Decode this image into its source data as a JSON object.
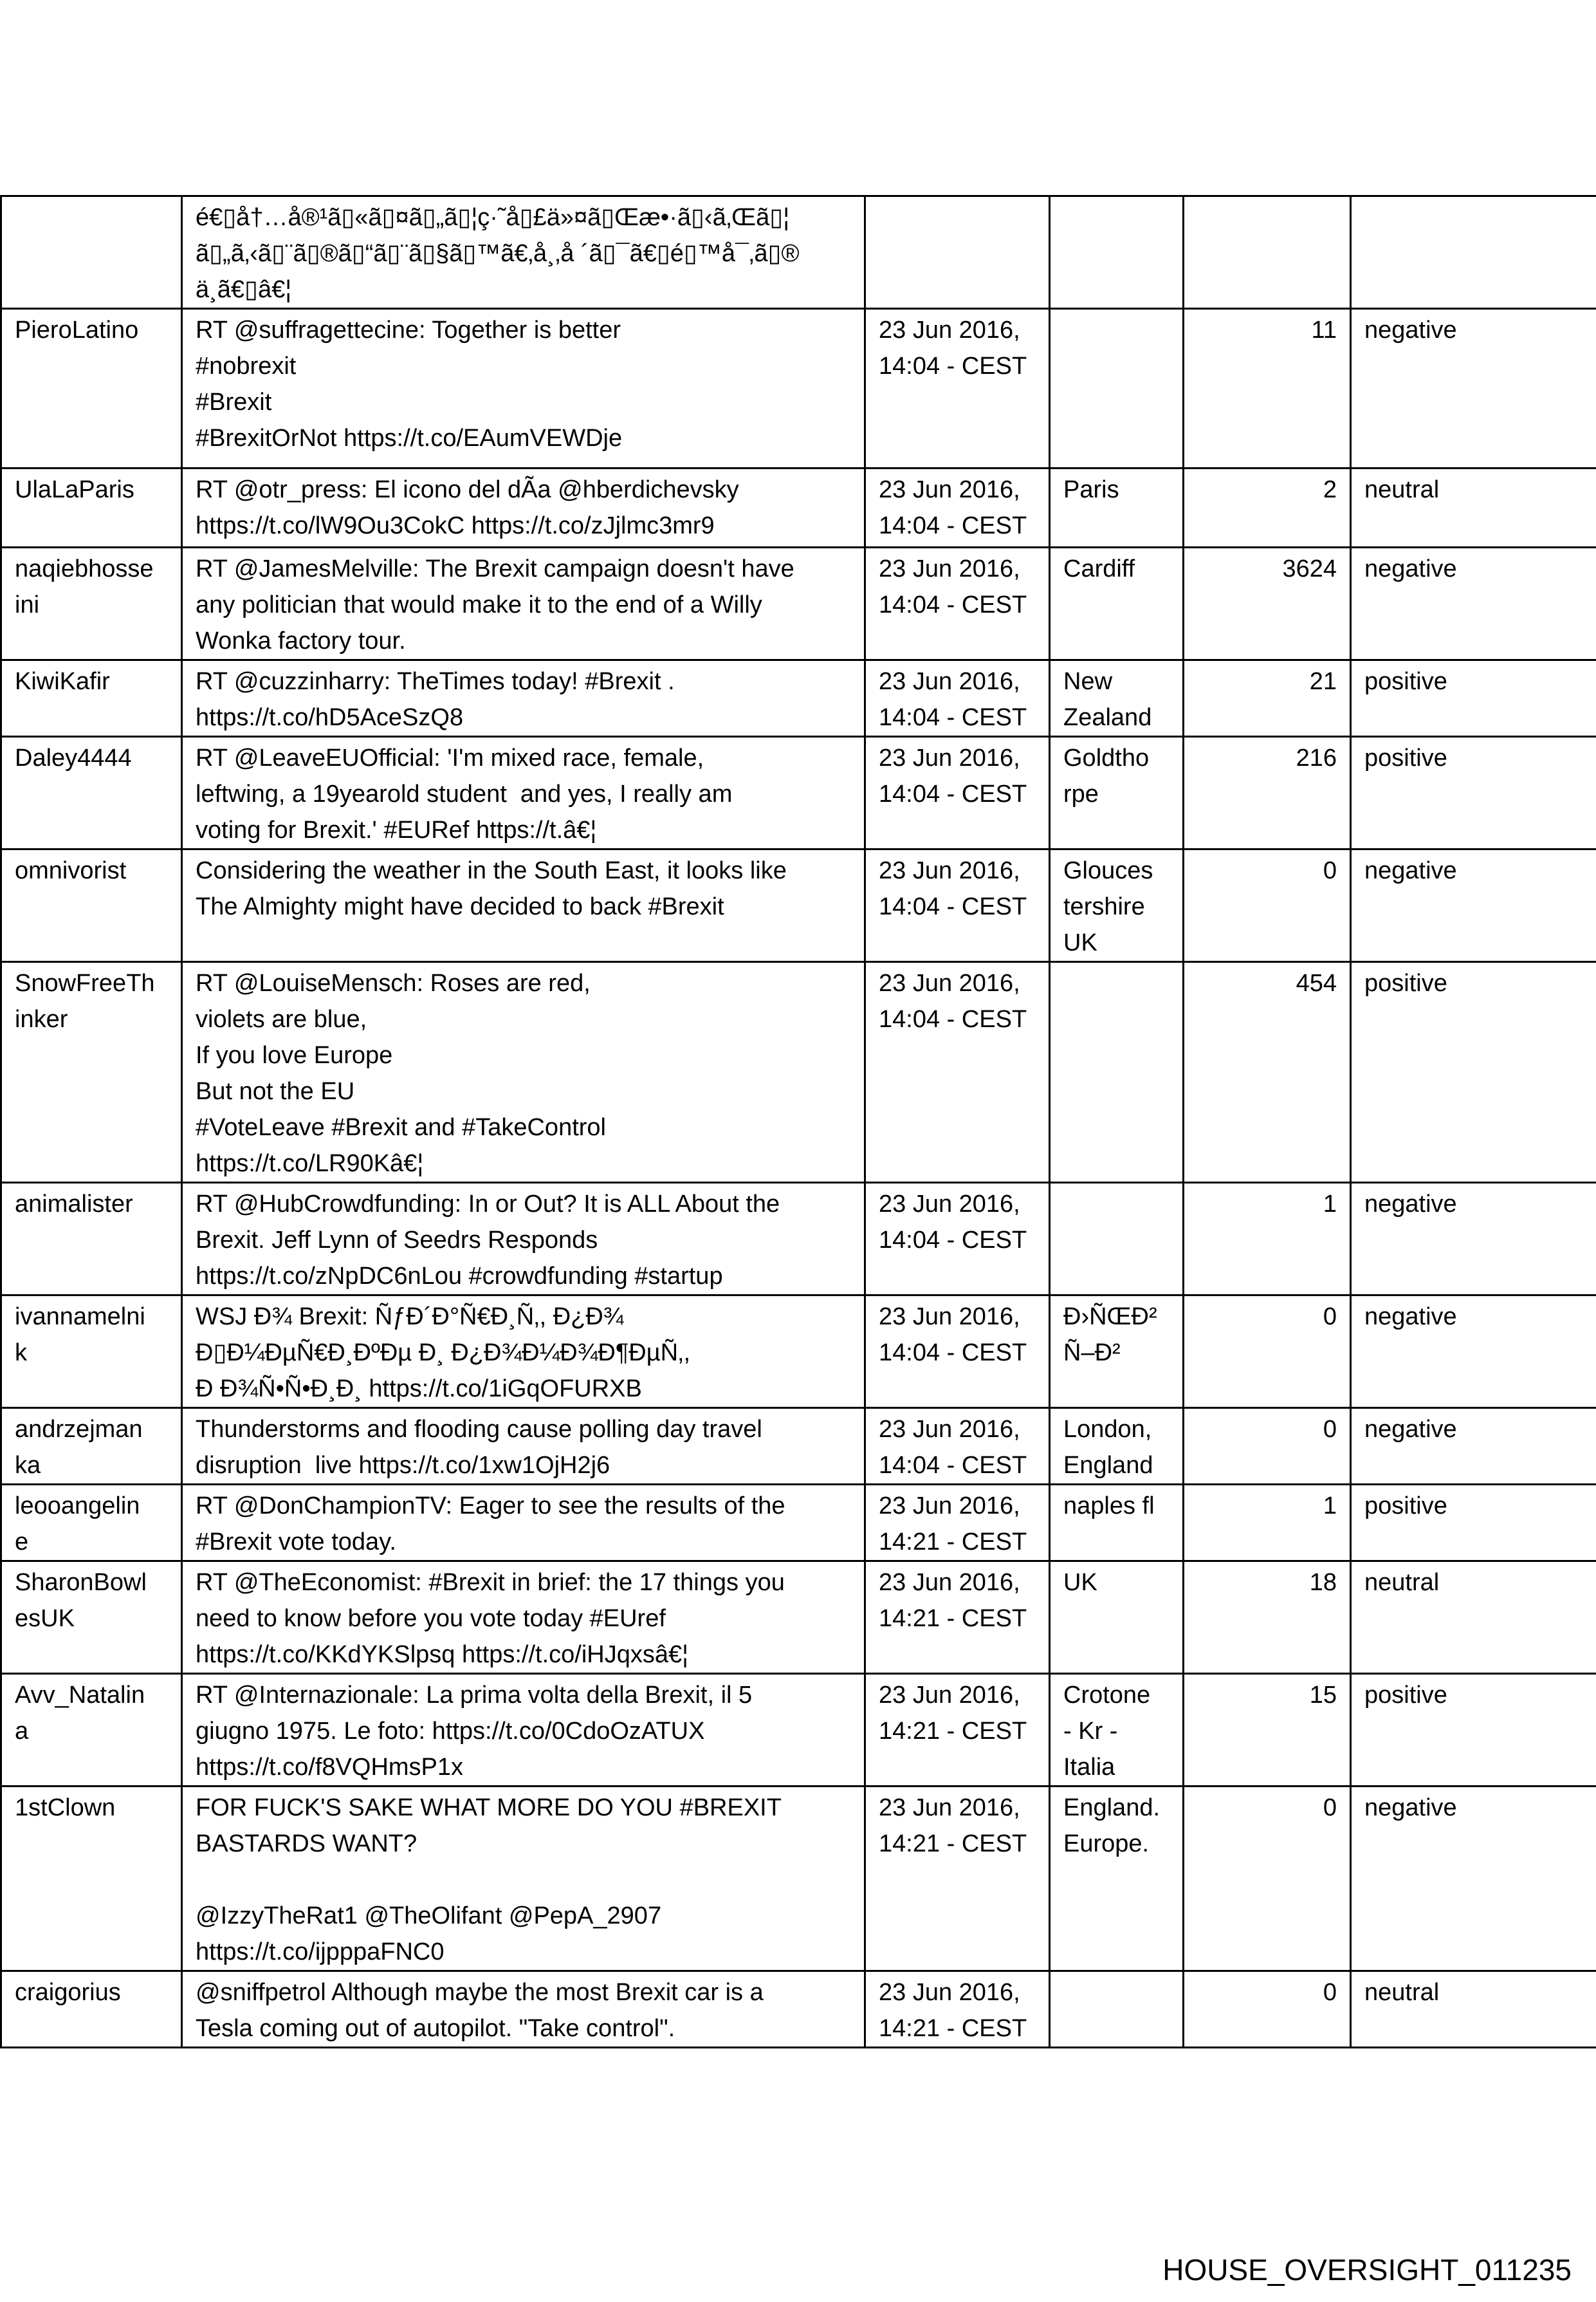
{
  "rows": [
    {
      "user": "",
      "text": "é€▯å†…å®¹ã▯«ã▯¤ã▯„ã▯¦ç·˜å▯£ä»¤ã▯Œæ•·ã▯‹ã‚Œã▯¦\nã▯„ã‚‹ã▯¨ã▯®ã▯“ã▯¨ã▯§ã▯™ã€‚å¸‚å ´ã▯¯ã€▯é▯™å¯‚ã▯®\nä¸ã€▯â€¦",
      "date": "",
      "location": "",
      "count": "",
      "sentiment": ""
    },
    {
      "user": "PieroLatino",
      "text": "RT @suffragettecine: Together is better\n#nobrexit\n#Brexit\n#BrexitOrNot https://t.co/EAumVEWDje",
      "date": "23 Jun 2016,\n14:04 - CEST",
      "location": "",
      "count": "11",
      "sentiment": "negative"
    },
    {
      "user": "UlaLaParis",
      "text": "RT @otr_press: El icono del dÃa @hberdichevsky\nhttps://t.co/lW9Ou3CokC https://t.co/zJjlmc3mr9",
      "date": "23 Jun 2016,\n14:04 - CEST",
      "location": "Paris",
      "count": "2",
      "sentiment": "neutral"
    },
    {
      "user": "naqiebhosse\nini",
      "text": "RT @JamesMelville: The Brexit campaign doesn't have\nany politician that would make it to the end of a Willy\nWonka factory tour.",
      "date": "23 Jun 2016,\n14:04 - CEST",
      "location": "Cardiff",
      "count": "3624",
      "sentiment": "negative"
    },
    {
      "user": "KiwiKafir",
      "text": "RT @cuzzinharry: TheTimes today! #Brexit .\nhttps://t.co/hD5AceSzQ8",
      "date": "23 Jun 2016,\n14:04 - CEST",
      "location": "New\nZealand",
      "count": "21",
      "sentiment": "positive"
    },
    {
      "user": "Daley4444",
      "text": "RT @LeaveEUOfficial: 'I'm mixed race, female,\nleftwing, a 19yearold student  and yes, I really am\nvoting for Brexit.' #EURef https://t.â€¦",
      "date": "23 Jun 2016,\n14:04 - CEST",
      "location": "Goldtho\nrpe",
      "count": "216",
      "sentiment": "positive"
    },
    {
      "user": "omnivorist",
      "text": "Considering the weather in the South East, it looks like\nThe Almighty might have decided to back #Brexit",
      "date": "23 Jun 2016,\n14:04 - CEST",
      "location": "Glouces\ntershire\nUK",
      "count": "0",
      "sentiment": "negative"
    },
    {
      "user": "SnowFreeTh\ninker",
      "text": "RT @LouiseMensch: Roses are red,\nviolets are blue,\nIf you love Europe\nBut not the EU\n#VoteLeave #Brexit and #TakeControl\nhttps://t.co/LR90Kâ€¦",
      "date": "23 Jun 2016,\n14:04 - CEST",
      "location": "",
      "count": "454",
      "sentiment": "positive"
    },
    {
      "user": "animalister",
      "text": "RT @HubCrowdfunding: In or Out? It is ALL About the\nBrexit. Jeff Lynn of Seedrs Responds\nhttps://t.co/zNpDC6nLou #crowdfunding #startup",
      "date": "23 Jun 2016,\n14:04 - CEST",
      "location": "",
      "count": "1",
      "sentiment": "negative"
    },
    {
      "user": "ivannamelni\nk",
      "text": "WSJ Ð¾ Brexit: ÑƒÐ´Ð°Ñ€Ð¸Ñ‚, Ð¿Ð¾\nÐ▯Ð¼ÐµÑ€Ð¸ÐºÐµ Ð¸ Ð¿Ð¾Ð¼Ð¾Ð¶ÐµÑ‚,\nÐ Ð¾Ñ•Ñ•Ð¸Ð¸ https://t.co/1iGqOFURXB",
      "date": "23 Jun 2016,\n14:04 - CEST",
      "location": "Ð›ÑŒÐ²\nÑ–Ð²",
      "count": "0",
      "sentiment": "negative"
    },
    {
      "user": "andrzejman\nka",
      "text": "Thunderstorms and flooding cause polling day travel\ndisruption  live https://t.co/1xw1OjH2j6",
      "date": "23 Jun 2016,\n14:04 - CEST",
      "location": "London,\nEngland",
      "count": "0",
      "sentiment": "negative"
    },
    {
      "user": "leooangelin\ne",
      "text": "RT @DonChampionTV: Eager to see the results of the\n#Brexit vote today.",
      "date": "23 Jun 2016,\n14:21 - CEST",
      "location": "naples fl",
      "count": "1",
      "sentiment": "positive"
    },
    {
      "user": "SharonBowl\nesUK",
      "text": "RT @TheEconomist: #Brexit in brief: the 17 things you\nneed to know before you vote today #EUref\nhttps://t.co/KKdYKSlpsq https://t.co/iHJqxsâ€¦",
      "date": "23 Jun 2016,\n14:21 - CEST",
      "location": "UK",
      "count": "18",
      "sentiment": "neutral"
    },
    {
      "user": "Avv_Natalin\na",
      "text": "RT @Internazionale: La prima volta della Brexit, il 5\ngiugno 1975. Le foto: https://t.co/0CdoOzATUX\nhttps://t.co/f8VQHmsP1x",
      "date": "23 Jun 2016,\n14:21 - CEST",
      "location": "Crotone\n- Kr -\nItalia",
      "count": "15",
      "sentiment": "positive"
    },
    {
      "user": "1stClown",
      "text": "FOR FUCK'S SAKE WHAT MORE DO YOU #BREXIT\nBASTARDS WANT?\n\n@IzzyTheRat1 @TheOlifant @PepA_2907\nhttps://t.co/ijpppaFNC0",
      "date": "23 Jun 2016,\n14:21 - CEST",
      "location": "England.\nEurope.",
      "count": "0",
      "sentiment": "negative"
    },
    {
      "user": "craigorius",
      "text": "@sniffpetrol Although maybe the most Brexit car is a\nTesla coming out of autopilot. \"Take control\".",
      "date": "23 Jun 2016,\n14:21 - CEST",
      "location": "",
      "count": "0",
      "sentiment": "neutral"
    }
  ],
  "footer": "HOUSE_OVERSIGHT_011235"
}
